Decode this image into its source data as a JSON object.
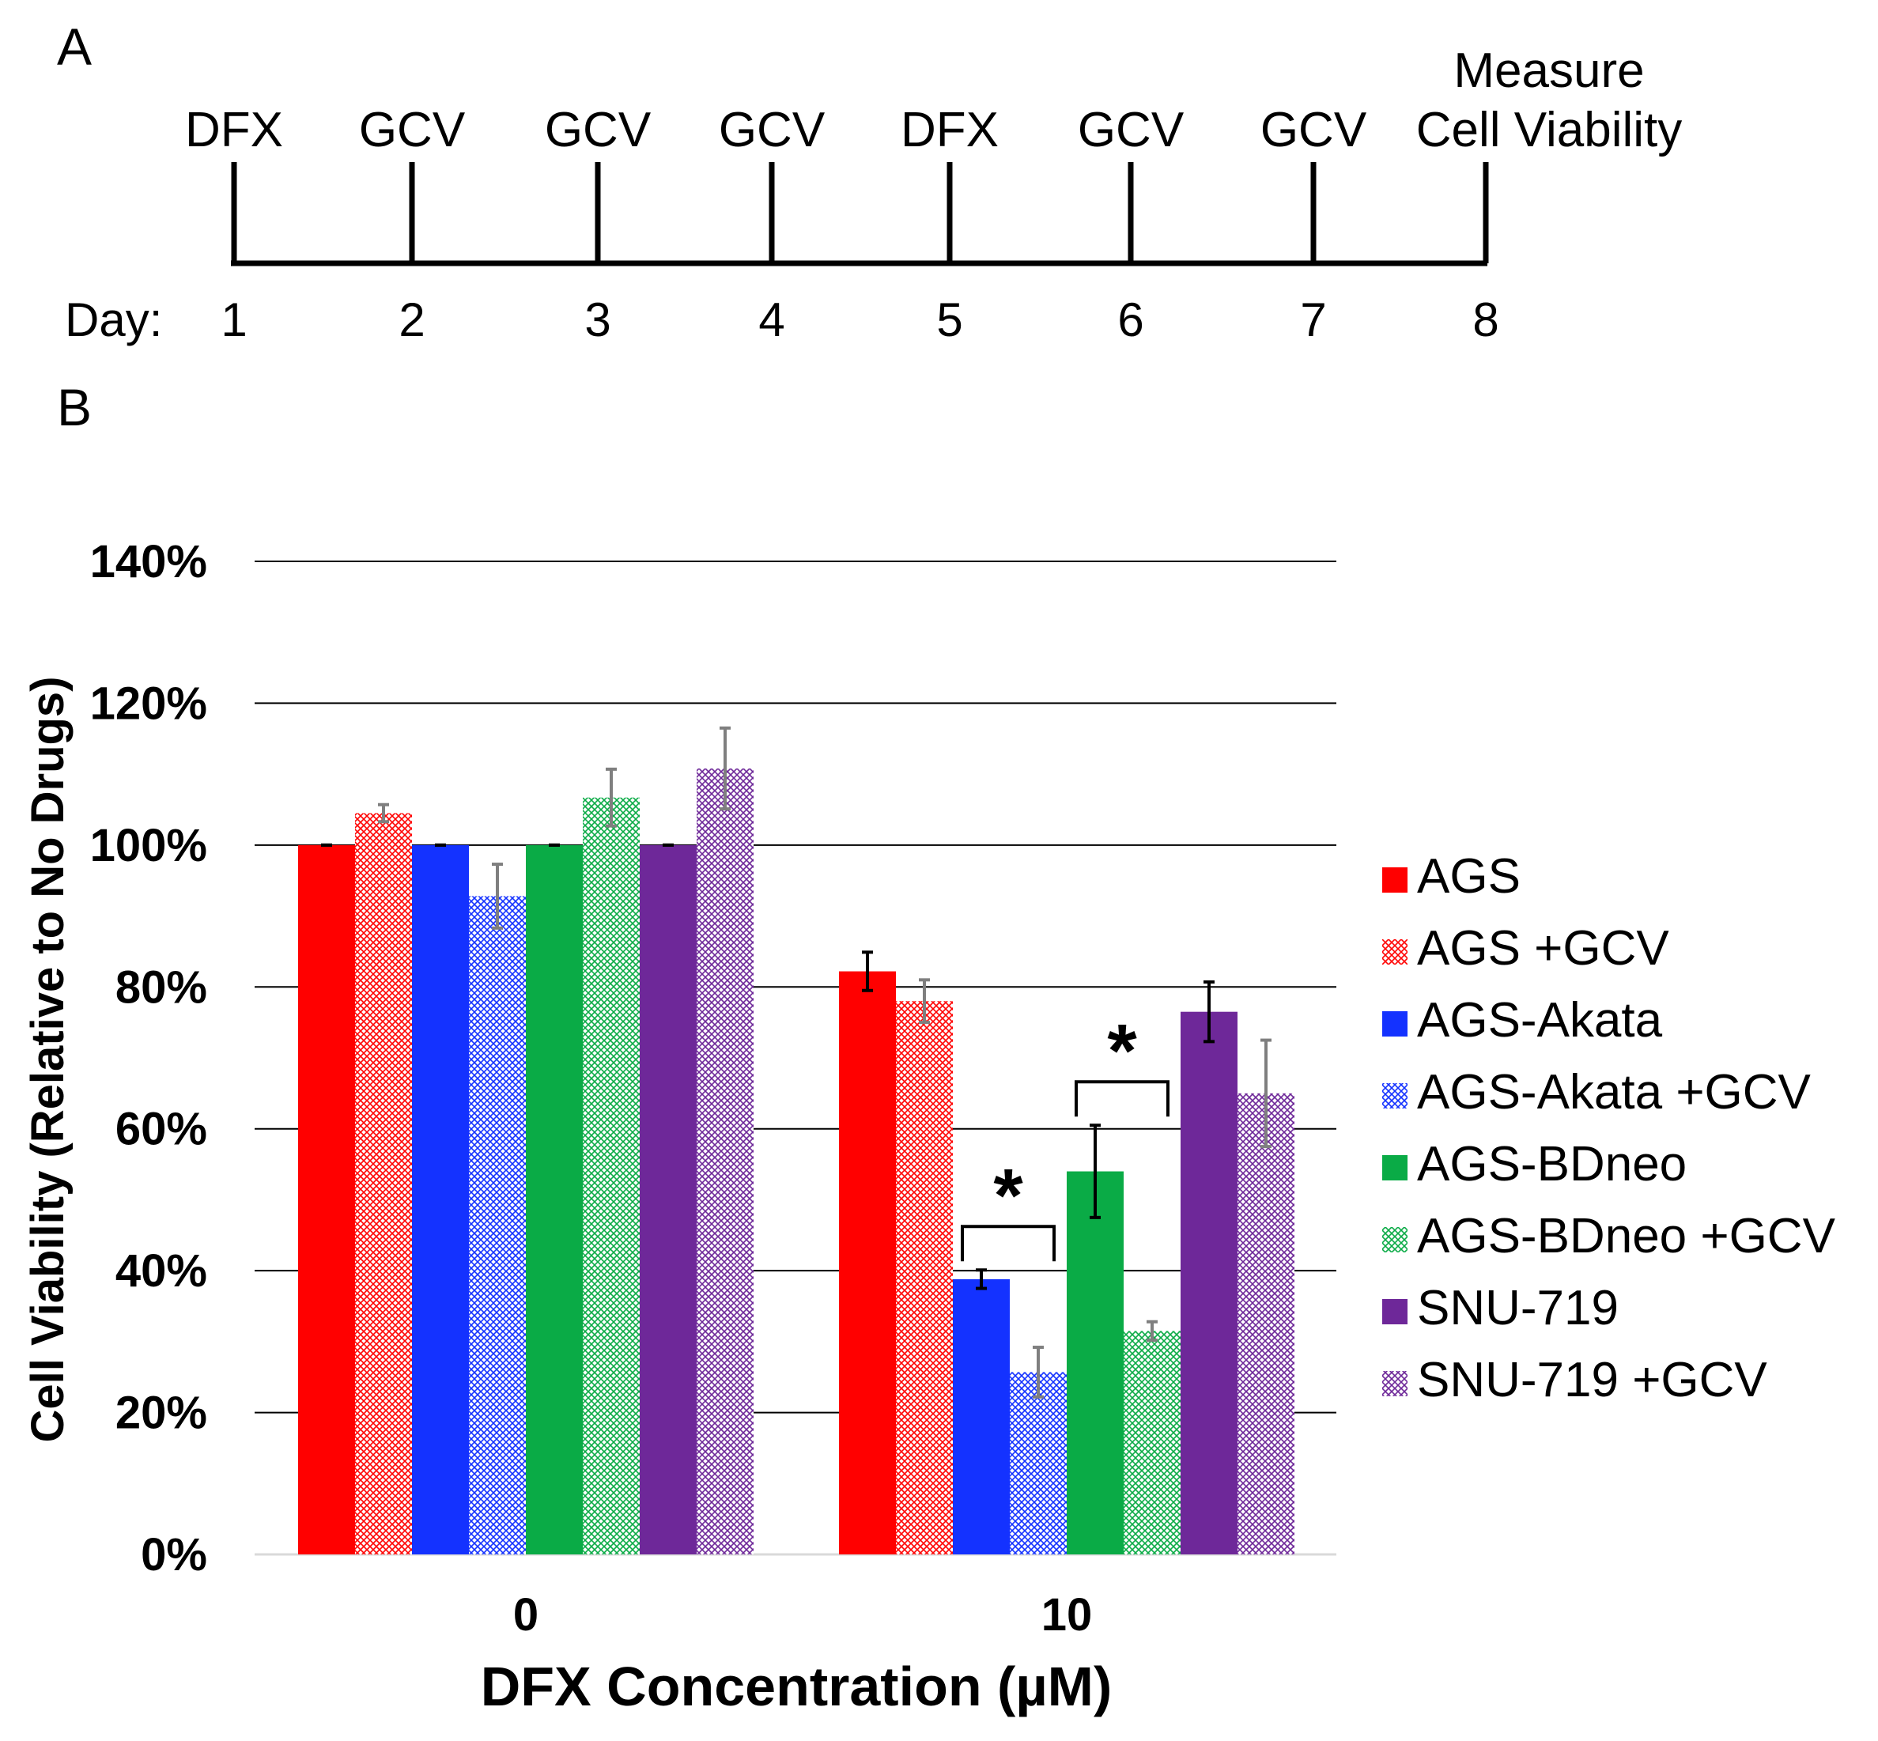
{
  "panel_a": {
    "label": "A",
    "day_prefix": "Day:",
    "days": [
      "1",
      "2",
      "3",
      "4",
      "5",
      "6",
      "7",
      "8"
    ],
    "events": [
      "DFX",
      "GCV",
      "GCV",
      "GCV",
      "DFX",
      "GCV",
      "GCV",
      "Measure Cell Viability"
    ],
    "final_event_lines": [
      "Measure",
      "Cell Viability"
    ]
  },
  "panel_b": {
    "label": "B"
  },
  "chart_data": {
    "type": "bar",
    "title": "",
    "xlabel": "DFX Concentration (µM)",
    "ylabel": "Cell Viability (Relative to No Drugs)",
    "categories": [
      "0",
      "10"
    ],
    "ylim": [
      0,
      1.4
    ],
    "ytick_values": [
      0,
      0.2,
      0.4,
      0.6,
      0.8,
      1.0,
      1.2,
      1.4
    ],
    "ytick_labels": [
      "0%",
      "20%",
      "40%",
      "60%",
      "80%",
      "100%",
      "120%",
      "140%"
    ],
    "grid": true,
    "legend_position": "right",
    "series": [
      {
        "name": "AGS",
        "color": "#ff0000",
        "pattern": "solid",
        "values": [
          1.0,
          0.822
        ],
        "errors": [
          0.0,
          0.027
        ]
      },
      {
        "name": "AGS +GCV",
        "color": "#ff0000",
        "pattern": "hatched",
        "values": [
          1.045,
          0.78
        ],
        "errors": [
          0.012,
          0.03
        ]
      },
      {
        "name": "AGS-Akata",
        "color": "#1432ff",
        "pattern": "solid",
        "values": [
          1.0,
          0.388
        ],
        "errors": [
          0.0,
          0.013
        ]
      },
      {
        "name": "AGS-Akata +GCV",
        "color": "#1432ff",
        "pattern": "hatched",
        "values": [
          0.928,
          0.257
        ],
        "errors": [
          0.045,
          0.035
        ]
      },
      {
        "name": "AGS-BDneo",
        "color": "#0aab46",
        "pattern": "solid",
        "values": [
          1.0,
          0.54
        ],
        "errors": [
          0.0,
          0.065
        ]
      },
      {
        "name": "AGS-BDneo +GCV",
        "color": "#0aab46",
        "pattern": "hatched",
        "values": [
          1.067,
          0.315
        ],
        "errors": [
          0.04,
          0.013
        ]
      },
      {
        "name": "SNU-719",
        "color": "#6e2899",
        "pattern": "solid",
        "values": [
          1.0,
          0.765
        ],
        "errors": [
          0.0,
          0.042
        ]
      },
      {
        "name": "SNU-719 +GCV",
        "color": "#6e2899",
        "pattern": "hatched",
        "values": [
          1.108,
          0.65
        ],
        "errors": [
          0.057,
          0.075
        ]
      }
    ],
    "annotations": [
      {
        "text": "*",
        "category": "10",
        "between": [
          "AGS-Akata",
          "AGS-Akata +GCV"
        ]
      },
      {
        "text": "*",
        "category": "10",
        "between": [
          "AGS-BDneo",
          "AGS-BDneo +GCV"
        ]
      }
    ],
    "error_bar_colors": {
      "solid": "#000000",
      "hatched": "#7f7f7f"
    }
  }
}
